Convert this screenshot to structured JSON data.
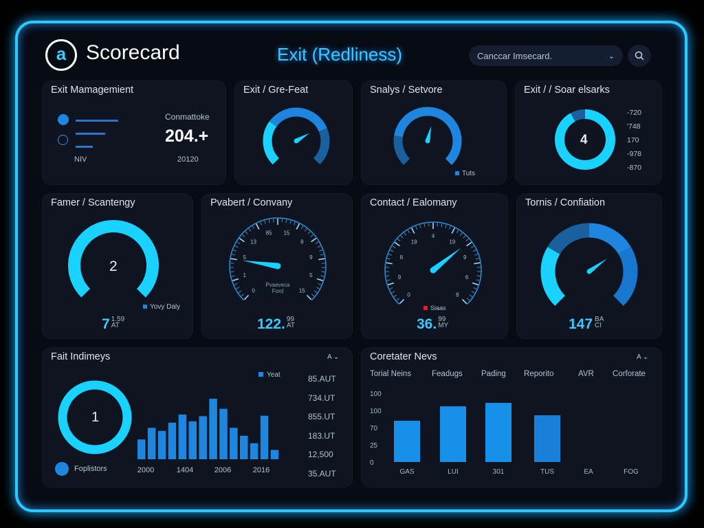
{
  "header": {
    "app_name": "Scorecard",
    "title": "Exit (Redliness)",
    "select_value": "Canccar Imsecard.",
    "logo_glyph": "a",
    "search_icon": "search-icon"
  },
  "colors": {
    "accent": "#2ec8ff",
    "blue": "#1f86e0",
    "dark_blue": "#1a5f9e",
    "cyan": "#19d2ff",
    "red": "#e0202a"
  },
  "cards": {
    "exit_management": {
      "title": "Exit Mamagemient",
      "label_right": "Conmattoke",
      "value": "204.+",
      "sub": "20120",
      "footer": "NIV"
    },
    "exit_grefeat": {
      "title": "Exit / Gre-Feat",
      "needle": 0.72
    },
    "snalys": {
      "title": "Snalys / Setvore",
      "legend": "Tuts",
      "needle": 0.55
    },
    "exit_soar": {
      "title": "Exit / / Soar elsarks",
      "center": "4",
      "legend": [
        "-720",
        "'748",
        "170",
        "-978",
        "-870"
      ],
      "fill": 0.92
    },
    "famer": {
      "title": "Famer / Scantengy",
      "center": "2",
      "legend": "Yovy Daly",
      "value": "7",
      "sup": "1.59",
      "sub": "AT"
    },
    "pvabert": {
      "title": "Pvabert / Convany",
      "dial_labels": [
        "0",
        "1",
        "5",
        "13",
        "85",
        "15",
        "8",
        "9",
        "5",
        "15"
      ],
      "caption1": "Pvaeveca",
      "caption2": "Ford",
      "value": "122.",
      "sup": "99",
      "sub": "AT",
      "needle": 0.2
    },
    "contact": {
      "title": "Contact / Ealomany",
      "dial_labels": [
        "0",
        "9",
        "8",
        "19",
        "4",
        "19",
        "9",
        "6",
        "8"
      ],
      "legend": "Siaas",
      "value": "36.",
      "sup": "99",
      "sub": "MY",
      "needle": 0.69
    },
    "tornis": {
      "title": "Tornis / Confiation",
      "value": "147",
      "sup": "BA",
      "sub": "CI",
      "needle": 0.7
    },
    "fait": {
      "title": "Fait Indimeys",
      "center": "1",
      "legend": "Yeat",
      "footer": "Foplistors",
      "menu": "A",
      "right_values": [
        "85.AUT",
        "734.UT",
        "855.UT",
        "183.UT",
        "12,500",
        "35.AUT"
      ]
    },
    "coretater": {
      "title": "Coretater Nevs",
      "menu": "A",
      "columns": [
        "Torial Neins",
        "Feadugs",
        "Pading",
        "Reporito",
        "AVR",
        "Corforate"
      ]
    }
  },
  "chart_data": [
    {
      "type": "bar",
      "categories": [
        "2000",
        "",
        "",
        "1404",
        "",
        "",
        "",
        "2006",
        "",
        "",
        "",
        "2016",
        "",
        ""
      ],
      "tick_labels": [
        "2000",
        "1404",
        "2006",
        "2016"
      ],
      "values": [
        85,
        135,
        122,
        157,
        192,
        163,
        185,
        260,
        217,
        135,
        101,
        69,
        187,
        40
      ],
      "legend": "Yeat"
    },
    {
      "type": "bar",
      "categories": [
        "GAS",
        "LUI",
        "301",
        "TUS",
        "EA",
        "FOG"
      ],
      "values": [
        60,
        81,
        86,
        68,
        0,
        0
      ],
      "ytick_labels": [
        "0",
        "25",
        "70",
        "100",
        "100"
      ],
      "ylim": [
        0,
        100
      ]
    }
  ]
}
